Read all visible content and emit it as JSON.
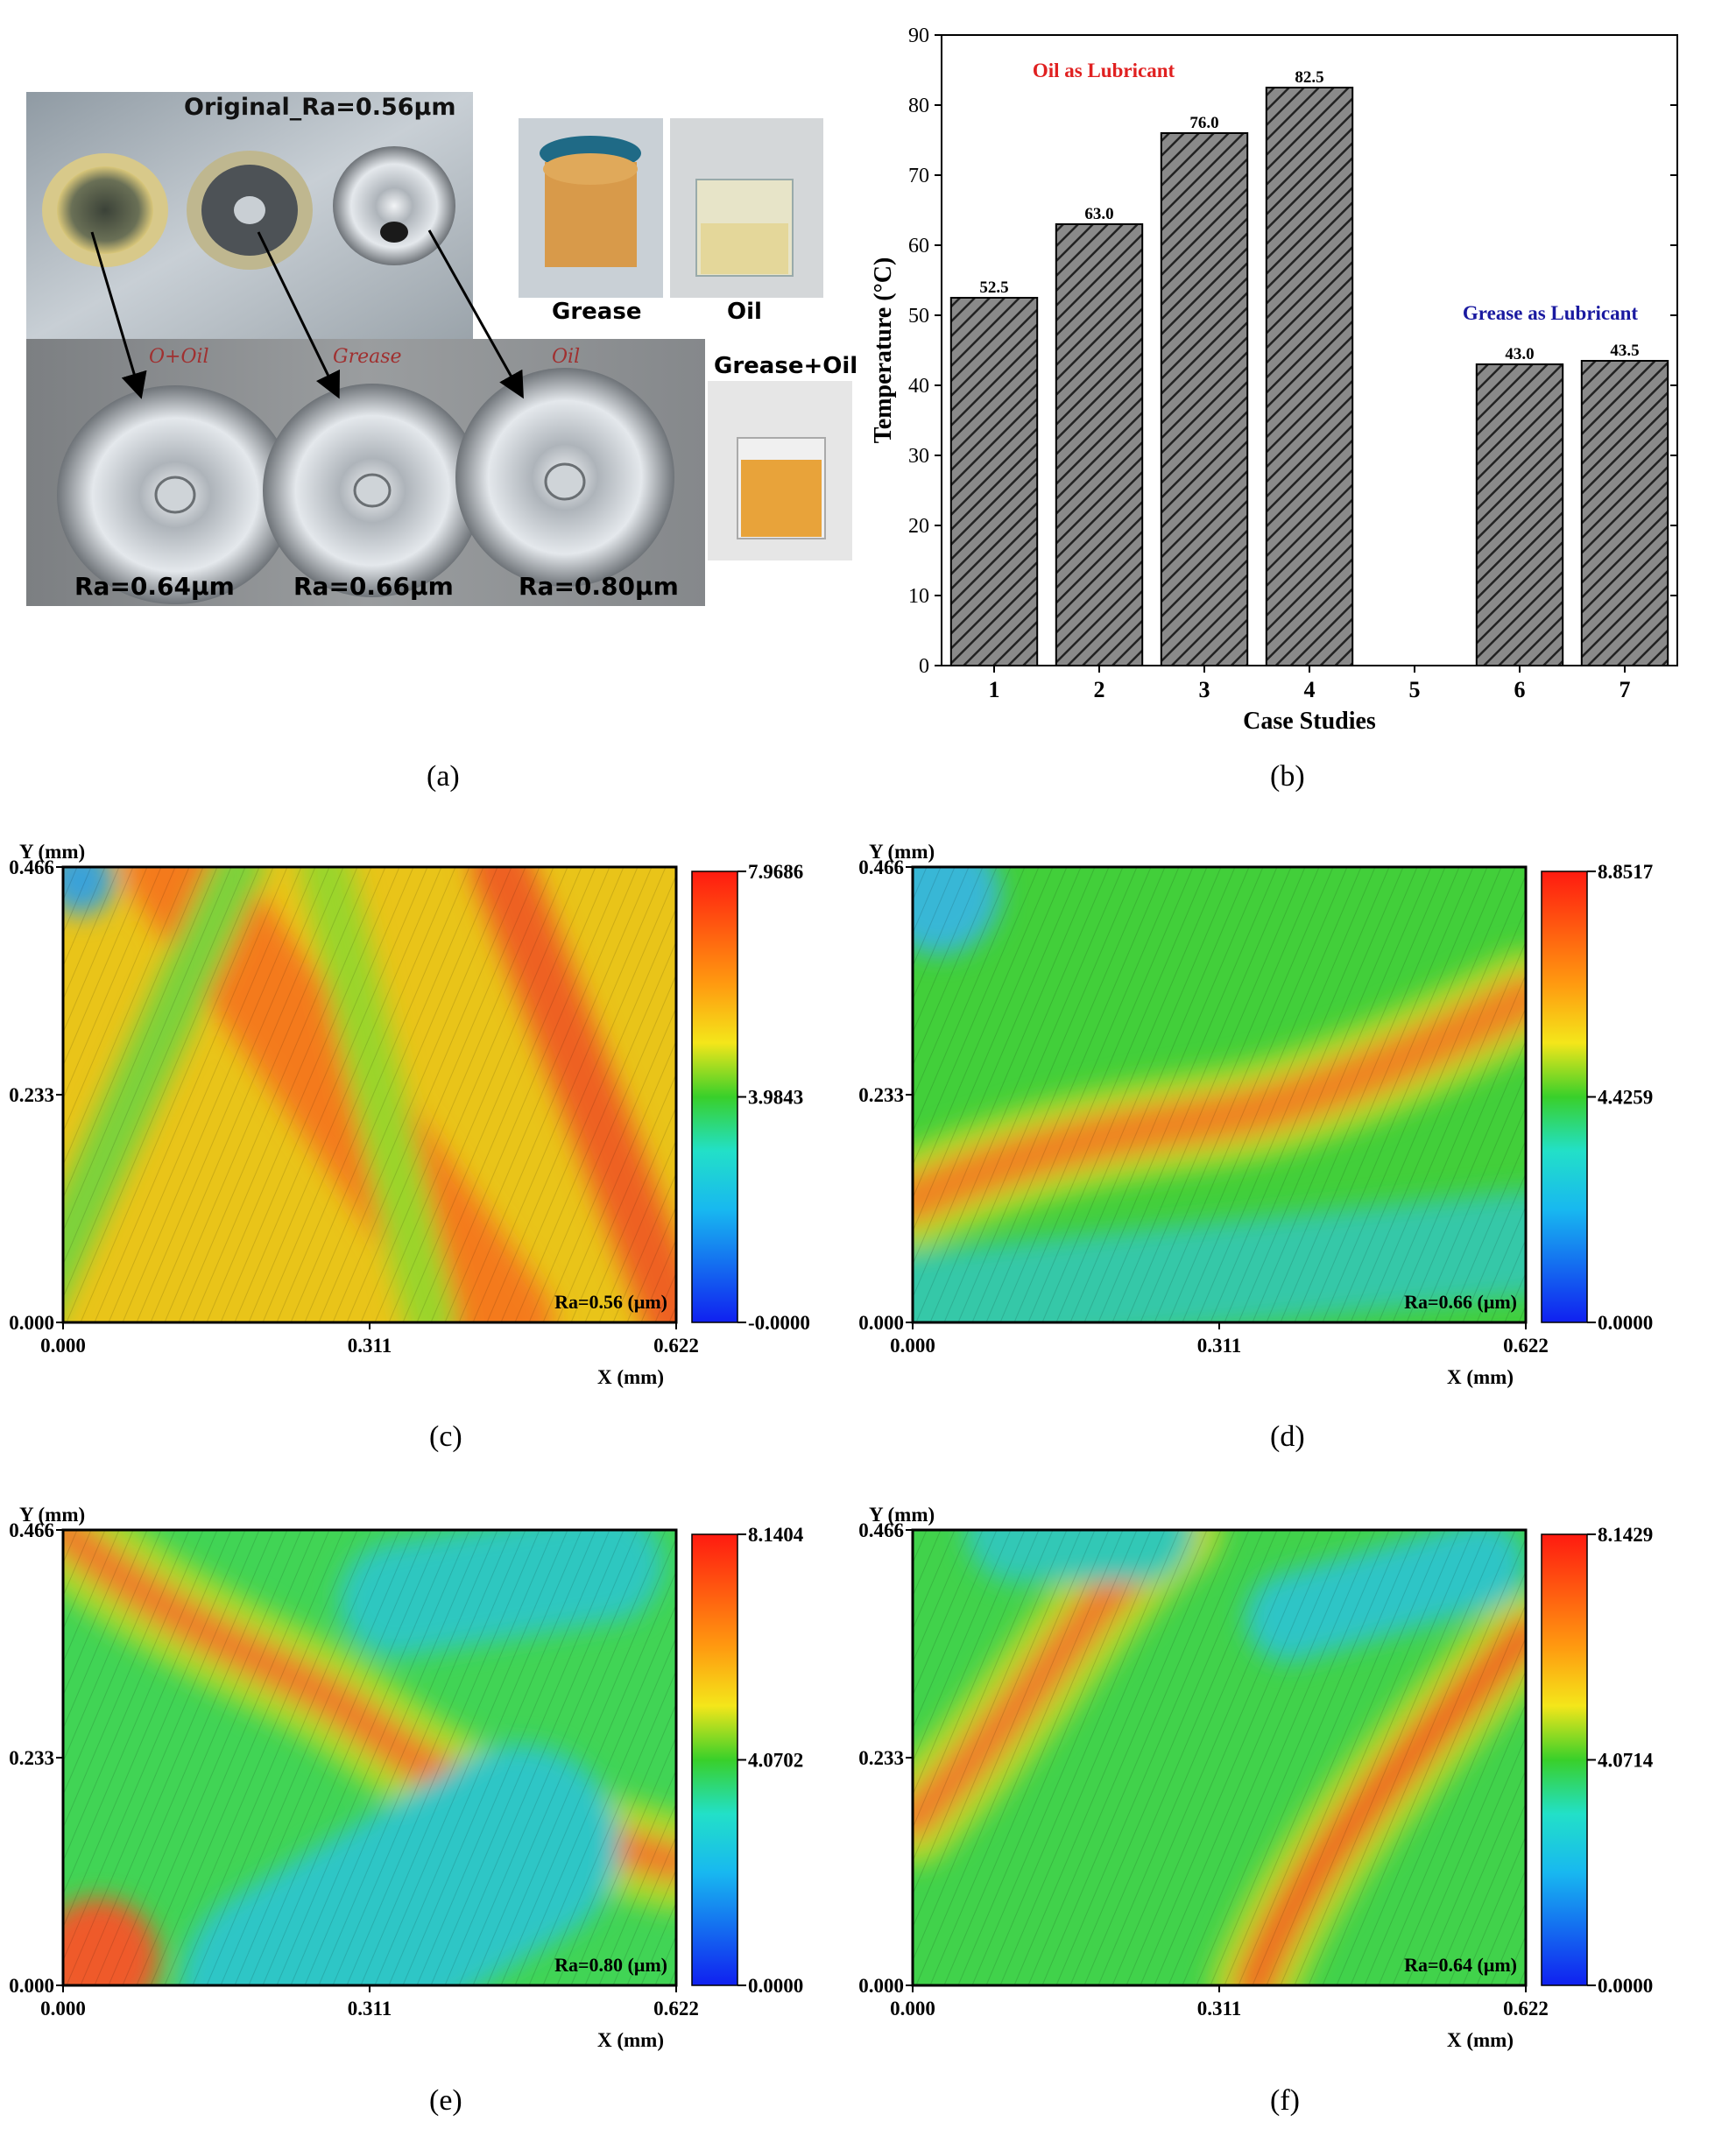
{
  "panels": {
    "a": {
      "label": "(a)",
      "original_label": "Original_Ra=0.56μm",
      "bottom_labels": [
        "Ra=0.64μm",
        "Ra=0.66μm",
        "Ra=0.80μm"
      ],
      "handwritten": [
        "O+Oil",
        "Grease",
        "Oil"
      ],
      "product_labels": [
        "Grease",
        "Oil",
        "Grease+Oil"
      ]
    },
    "b": {
      "label": "(b)"
    },
    "c": {
      "label": "(c)"
    },
    "d": {
      "label": "(d)"
    },
    "e": {
      "label": "(e)"
    },
    "f": {
      "label": "(f)"
    }
  },
  "chart_data": [
    {
      "type": "bar",
      "panel": "b",
      "categories": [
        "1",
        "2",
        "3",
        "4",
        "5",
        "6",
        "7"
      ],
      "values": [
        52.5,
        63.0,
        76.0,
        82.5,
        null,
        43.0,
        43.5
      ],
      "data_labels": [
        "52.5",
        "63.0",
        "76.0",
        "82.5",
        "",
        "43.0",
        "43.5"
      ],
      "xlabel": "Case Studies",
      "ylabel": "Temperature (°C)",
      "ylim": [
        0,
        90
      ],
      "yticks": [
        "0",
        "10",
        "20",
        "30",
        "40",
        "50",
        "60",
        "70",
        "80",
        "90"
      ],
      "annotations": [
        {
          "text": "Oil as Lubricant",
          "color": "#e02020"
        },
        {
          "text": "Grease as Lubricant",
          "color": "#1a1aa0"
        }
      ],
      "bar_color": "#4a4a4a",
      "hatch": "diagonal"
    },
    {
      "type": "heatmap",
      "panel": "c",
      "ylabel": "Y (mm)",
      "xlabel": "X (mm)",
      "xticks": [
        "0.000",
        "0.311",
        "0.622"
      ],
      "yticks": [
        "0.000",
        "0.233",
        "0.466"
      ],
      "colorbar": [
        "7.9686",
        "3.9843",
        "-0.0000"
      ],
      "annotation": "Ra=0.56 (μm)"
    },
    {
      "type": "heatmap",
      "panel": "d",
      "ylabel": "Y (mm)",
      "xlabel": "X (mm)",
      "xticks": [
        "0.000",
        "0.311",
        "0.622"
      ],
      "yticks": [
        "0.000",
        "0.233",
        "0.466"
      ],
      "colorbar": [
        "8.8517",
        "4.4259",
        "0.0000"
      ],
      "annotation": "Ra=0.66 (μm)"
    },
    {
      "type": "heatmap",
      "panel": "e",
      "ylabel": "Y (mm)",
      "xlabel": "X (mm)",
      "xticks": [
        "0.000",
        "0.311",
        "0.622"
      ],
      "yticks": [
        "0.000",
        "0.233",
        "0.466"
      ],
      "colorbar": [
        "8.1404",
        "4.0702",
        "0.0000"
      ],
      "annotation": "Ra=0.80 (μm)"
    },
    {
      "type": "heatmap",
      "panel": "f",
      "ylabel": "Y (mm)",
      "xlabel": "X (mm)",
      "xticks": [
        "0.000",
        "0.311",
        "0.622"
      ],
      "yticks": [
        "0.000",
        "0.233",
        "0.466"
      ],
      "colorbar": [
        "8.1429",
        "4.0714",
        "0.0000"
      ],
      "annotation": "Ra=0.64 (μm)"
    }
  ]
}
